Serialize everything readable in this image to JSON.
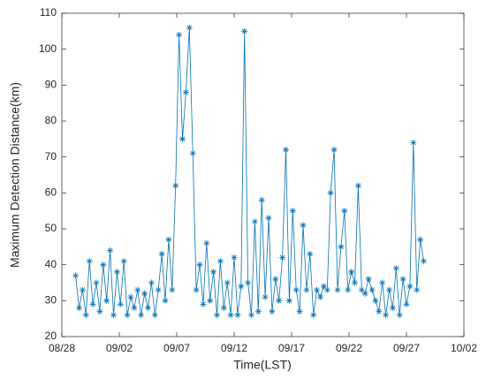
{
  "chart_data": {
    "type": "line",
    "x_label": "Time(LST)",
    "y_label": "Maximum Detection Distance(km)",
    "color": "#0072bd",
    "marker": "asterisk",
    "xlim": [
      0,
      35
    ],
    "xticks": [
      {
        "value": 0,
        "label": "08/28"
      },
      {
        "value": 5,
        "label": "09/02"
      },
      {
        "value": 10,
        "label": "09/07"
      },
      {
        "value": 15,
        "label": "09/12"
      },
      {
        "value": 20,
        "label": "09/17"
      },
      {
        "value": 25,
        "label": "09/22"
      },
      {
        "value": 30,
        "label": "09/27"
      },
      {
        "value": 35,
        "label": "10/02"
      }
    ],
    "ylim": [
      20,
      110
    ],
    "yticks": [
      20,
      30,
      40,
      50,
      60,
      70,
      80,
      90,
      100,
      110
    ],
    "x": [
      1.2,
      1.5,
      1.8,
      2.1,
      2.4,
      2.7,
      3,
      3.3,
      3.6,
      3.9,
      4.2,
      4.5,
      4.8,
      5.1,
      5.4,
      5.7,
      6,
      6.3,
      6.6,
      6.9,
      7.2,
      7.5,
      7.8,
      8.1,
      8.4,
      8.7,
      9,
      9.3,
      9.6,
      9.9,
      10.2,
      10.5,
      10.8,
      11.1,
      11.4,
      11.7,
      12,
      12.3,
      12.6,
      12.9,
      13.2,
      13.5,
      13.8,
      14.1,
      14.4,
      14.7,
      15,
      15.3,
      15.6,
      15.9,
      16.2,
      16.5,
      16.8,
      17.1,
      17.4,
      17.7,
      18,
      18.3,
      18.6,
      18.9,
      19.2,
      19.5,
      19.8,
      20.1,
      20.4,
      20.7,
      21,
      21.3,
      21.6,
      21.9,
      22.2,
      22.5,
      22.8,
      23.1,
      23.4,
      23.7,
      24,
      24.3,
      24.6,
      24.9,
      25.2,
      25.5,
      25.8,
      26.1,
      26.4,
      26.7,
      27,
      27.3,
      27.6,
      27.9,
      28.2,
      28.5,
      28.8,
      29.1,
      29.4,
      29.7,
      30,
      30.3,
      30.6,
      30.9,
      31.2,
      31.5
    ],
    "values": [
      37,
      28,
      33,
      26,
      41,
      29,
      35,
      27,
      40,
      30,
      44,
      26,
      38,
      29,
      41,
      26,
      31,
      28,
      33,
      26,
      32,
      28,
      35,
      26,
      33,
      43,
      30,
      47,
      33,
      62,
      104,
      75,
      88,
      106,
      71,
      33,
      40,
      29,
      46,
      30,
      38,
      26,
      41,
      28,
      35,
      26,
      42,
      26,
      34,
      105,
      35,
      26,
      52,
      27,
      58,
      31,
      53,
      27,
      36,
      30,
      42,
      72,
      30,
      55,
      33,
      27,
      51,
      33,
      43,
      26,
      33,
      31,
      34,
      33,
      60,
      72,
      33,
      45,
      55,
      33,
      38,
      35,
      62,
      33,
      32,
      36,
      33,
      30,
      27,
      35,
      26,
      33,
      28,
      39,
      26,
      36,
      29,
      34,
      74,
      33,
      47,
      41
    ]
  }
}
